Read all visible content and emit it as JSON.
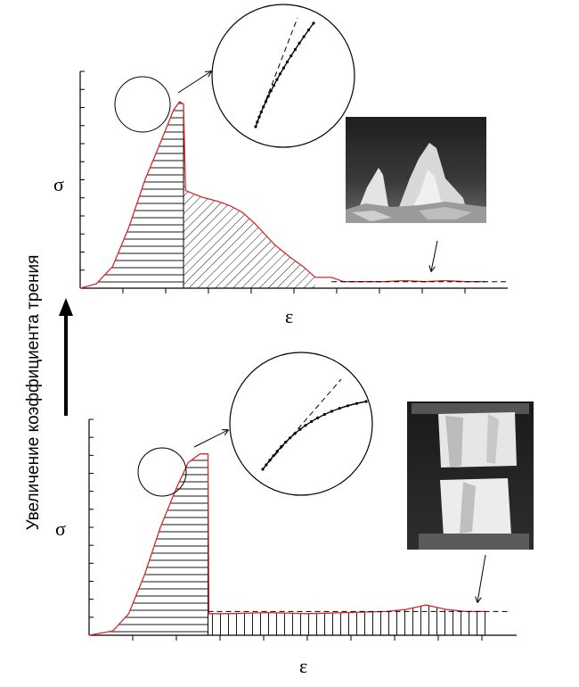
{
  "figure": {
    "side_label": "Увеличение коэффициента трения",
    "colors": {
      "curve": "#d42a2a",
      "axis": "#000000",
      "hatch": "#000000",
      "photo_background": "#2a2a2a",
      "specimen": "#e8e8e8"
    },
    "arrow_direction": "up"
  },
  "chart_data": [
    {
      "type": "line",
      "panel": "top",
      "ylabel": "σ",
      "xlabel": "ε",
      "xlim": [
        0,
        100
      ],
      "ylim": [
        0,
        100
      ],
      "x": [
        0,
        4,
        8,
        12,
        16,
        20,
        23,
        24.5,
        25.5,
        26,
        30,
        34,
        37,
        40,
        43,
        45,
        48,
        52,
        55,
        58,
        62,
        65,
        70,
        75,
        80,
        85,
        90,
        95,
        100
      ],
      "y": [
        0,
        2,
        10,
        28,
        50,
        68,
        82,
        86,
        85,
        45,
        42,
        40,
        38,
        35,
        30,
        26,
        20,
        14,
        10,
        5,
        5,
        3,
        3,
        3,
        3.5,
        3,
        3.5,
        3,
        3
      ],
      "peak_x": 25.5,
      "residual_level": 3,
      "regions": [
        {
          "pattern": "horizontal-hatch",
          "x_range": [
            0,
            25.5
          ]
        },
        {
          "pattern": "diagonal-hatch",
          "x_range": [
            25.5,
            58
          ]
        }
      ],
      "inset": "zoom of pre-peak curve with dashed tangent",
      "photo": "fractured specimen fragments"
    },
    {
      "type": "line",
      "panel": "bottom",
      "ylabel": "σ",
      "xlabel": "ε",
      "xlim": [
        0,
        100
      ],
      "ylim": [
        0,
        100
      ],
      "x": [
        0,
        6,
        10,
        14,
        18,
        22,
        25,
        28,
        29.5,
        30,
        30.2,
        35,
        45,
        55,
        65,
        75,
        80,
        85,
        90,
        95,
        100
      ],
      "y": [
        0,
        2,
        10,
        28,
        50,
        68,
        80,
        84,
        84,
        84,
        10,
        10,
        10.5,
        10,
        10.5,
        11,
        12,
        14,
        12,
        11,
        11
      ],
      "peak_x": 30,
      "residual_level": 11,
      "regions": [
        {
          "pattern": "horizontal-hatch",
          "x_range": [
            0,
            30
          ]
        },
        {
          "pattern": "vertical-hatch",
          "x_range": [
            30,
            100
          ]
        }
      ],
      "inset": "zoom of pre-peak curve with dashed tangent",
      "photo": "cracked cylindrical specimen between platens"
    }
  ]
}
